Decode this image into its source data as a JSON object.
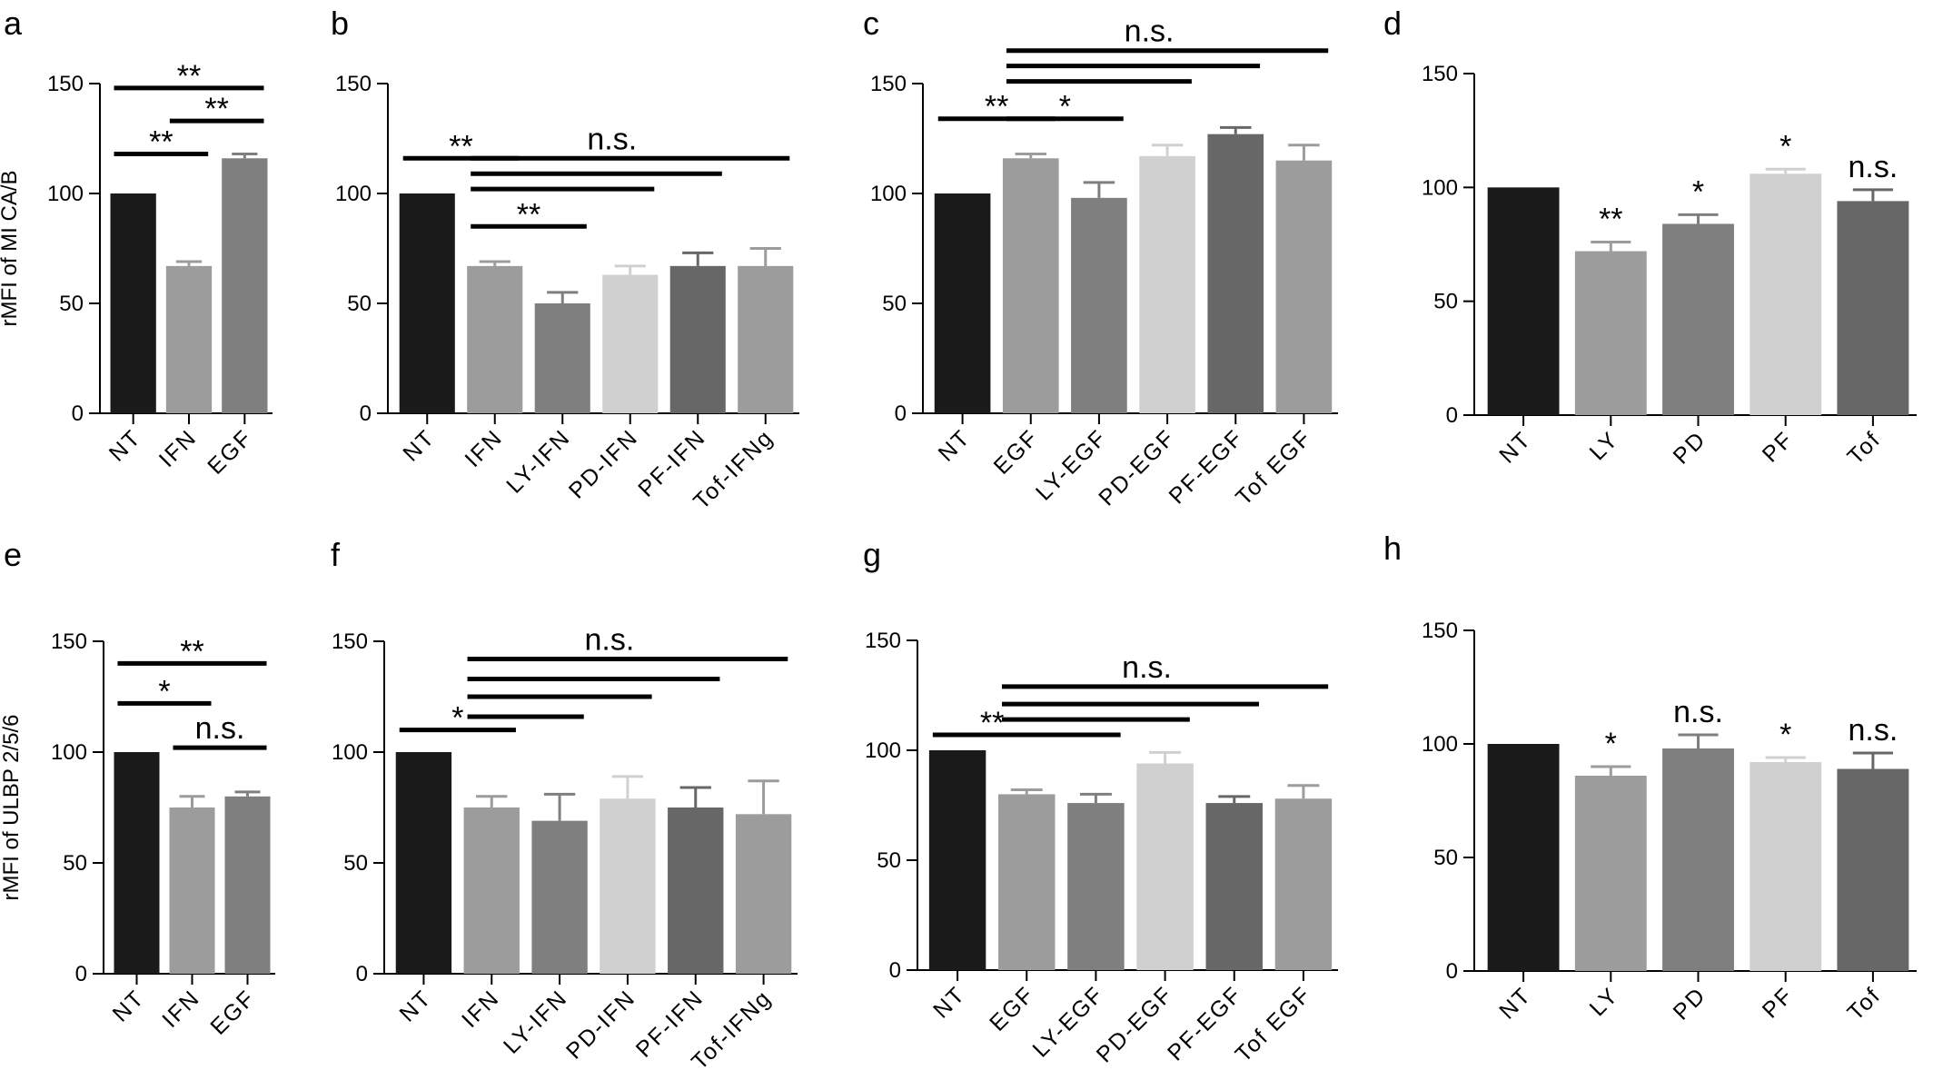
{
  "colors": {
    "black": "#1a1a1a",
    "mid_gray": "#9c9c9c",
    "gray": "#7f7f7f",
    "light_gray": "#d0d0d0",
    "dark_gray": "#676767"
  },
  "chart_data": [
    {
      "type": "bar",
      "panel_label": "a",
      "ylabel": "rMFI of MI CA/B",
      "ylim": [
        0,
        150
      ],
      "yticks": [
        0,
        50,
        100,
        150
      ],
      "categories": [
        "NT",
        "IFN",
        "EGF"
      ],
      "values": [
        100,
        67,
        116
      ],
      "errors": [
        0,
        2,
        2
      ],
      "colors": [
        "black",
        "mid_gray",
        "gray"
      ],
      "significance": [
        {
          "from": 0,
          "to": 2,
          "y": 148,
          "label": "**"
        },
        {
          "from": 0,
          "to": 1,
          "y": 118,
          "label": "**"
        },
        {
          "from": 1,
          "to": 2,
          "y": 133,
          "label": "**"
        }
      ]
    },
    {
      "type": "bar",
      "panel_label": "b",
      "ylabel": "",
      "ylim": [
        0,
        150
      ],
      "yticks": [
        0,
        50,
        100,
        150
      ],
      "categories": [
        "NT",
        "IFN",
        "LY-IFN",
        "PD-IFN",
        "PF-IFN",
        "Tof-IFNg"
      ],
      "values": [
        100,
        67,
        50,
        63,
        67,
        67
      ],
      "errors": [
        0,
        2,
        5,
        4,
        6,
        8
      ],
      "colors": [
        "black",
        "mid_gray",
        "gray",
        "light_gray",
        "dark_gray",
        "mid_gray"
      ],
      "significance": [
        {
          "from": 0,
          "to": 1,
          "y": 116,
          "label": "**"
        },
        {
          "from": 1,
          "to": 5,
          "y": 116,
          "label": "n.s."
        },
        {
          "from": 1,
          "to": 4,
          "y": 109,
          "label": ""
        },
        {
          "from": 1,
          "to": 3,
          "y": 102,
          "label": ""
        },
        {
          "from": 1,
          "to": 2,
          "y": 85,
          "label": "**"
        }
      ]
    },
    {
      "type": "bar",
      "panel_label": "c",
      "ylabel": "",
      "ylim": [
        0,
        150
      ],
      "yticks": [
        0,
        50,
        100,
        150
      ],
      "categories": [
        "NT",
        "EGF",
        "LY-EGF",
        "PD-EGF",
        "PF-EGF",
        "Tof EGF"
      ],
      "values": [
        100,
        116,
        98,
        117,
        127,
        115
      ],
      "errors": [
        0,
        2,
        7,
        5,
        3,
        7
      ],
      "colors": [
        "black",
        "mid_gray",
        "gray",
        "light_gray",
        "dark_gray",
        "mid_gray"
      ],
      "significance": [
        {
          "from": 0,
          "to": 1,
          "y": 134,
          "label": "**"
        },
        {
          "from": 1,
          "to": 5,
          "y": 165,
          "label": "n.s."
        },
        {
          "from": 1,
          "to": 4,
          "y": 158,
          "label": ""
        },
        {
          "from": 1,
          "to": 3,
          "y": 151,
          "label": ""
        },
        {
          "from": 1,
          "to": 2,
          "y": 134,
          "label": "*"
        }
      ]
    },
    {
      "type": "bar",
      "panel_label": "d",
      "ylabel": "",
      "ylim": [
        0,
        150
      ],
      "yticks": [
        0,
        50,
        100,
        150
      ],
      "categories": [
        "NT",
        "LY",
        "PD",
        "PF",
        "Tof"
      ],
      "values": [
        100,
        72,
        84,
        106,
        94
      ],
      "errors": [
        0,
        4,
        4,
        2,
        5
      ],
      "colors": [
        "black",
        "mid_gray",
        "gray",
        "light_gray",
        "dark_gray"
      ],
      "annotations": [
        "",
        "**",
        "*",
        "*",
        "n.s."
      ]
    },
    {
      "type": "bar",
      "panel_label": "e",
      "ylabel": "rMFI of ULBP 2/5/6",
      "ylim": [
        0,
        150
      ],
      "yticks": [
        0,
        50,
        100,
        150
      ],
      "categories": [
        "NT",
        "IFN",
        "EGF"
      ],
      "values": [
        100,
        75,
        80
      ],
      "errors": [
        0,
        5,
        2
      ],
      "colors": [
        "black",
        "mid_gray",
        "gray"
      ],
      "significance": [
        {
          "from": 0,
          "to": 2,
          "y": 140,
          "label": "**"
        },
        {
          "from": 0,
          "to": 1,
          "y": 122,
          "label": "*"
        },
        {
          "from": 1,
          "to": 2,
          "y": 102,
          "label": "n.s."
        }
      ]
    },
    {
      "type": "bar",
      "panel_label": "f",
      "ylabel": "",
      "ylim": [
        0,
        150
      ],
      "yticks": [
        0,
        50,
        100,
        150
      ],
      "categories": [
        "NT",
        "IFN",
        "LY-IFN",
        "PD-IFN",
        "PF-IFN",
        "Tof-IFNg"
      ],
      "values": [
        100,
        75,
        69,
        79,
        75,
        72
      ],
      "errors": [
        0,
        5,
        12,
        10,
        9,
        15
      ],
      "colors": [
        "black",
        "mid_gray",
        "gray",
        "light_gray",
        "dark_gray",
        "mid_gray"
      ],
      "significance": [
        {
          "from": 0,
          "to": 1,
          "y": 110,
          "label": "*"
        },
        {
          "from": 1,
          "to": 5,
          "y": 142,
          "label": "n.s."
        },
        {
          "from": 1,
          "to": 4,
          "y": 133,
          "label": ""
        },
        {
          "from": 1,
          "to": 3,
          "y": 125,
          "label": ""
        },
        {
          "from": 1,
          "to": 2,
          "y": 116,
          "label": ""
        }
      ]
    },
    {
      "type": "bar",
      "panel_label": "g",
      "ylabel": "",
      "ylim": [
        0,
        150
      ],
      "yticks": [
        0,
        50,
        100,
        150
      ],
      "categories": [
        "NT",
        "EGF",
        "LY-EGF",
        "PD-EGF",
        "PF-EGF",
        "Tof EGF"
      ],
      "values": [
        100,
        80,
        76,
        94,
        76,
        78
      ],
      "errors": [
        0,
        2,
        4,
        5,
        3,
        6
      ],
      "colors": [
        "black",
        "mid_gray",
        "gray",
        "light_gray",
        "dark_gray",
        "mid_gray"
      ],
      "significance": [
        {
          "from": 0,
          "to": 1,
          "y": 107,
          "label": "**"
        },
        {
          "from": 1,
          "to": 5,
          "y": 129,
          "label": "n.s."
        },
        {
          "from": 1,
          "to": 4,
          "y": 121,
          "label": ""
        },
        {
          "from": 1,
          "to": 3,
          "y": 114,
          "label": ""
        },
        {
          "from": 1,
          "to": 2,
          "y": 107,
          "label": ""
        }
      ]
    },
    {
      "type": "bar",
      "panel_label": "h",
      "ylabel": "",
      "ylim": [
        0,
        150
      ],
      "yticks": [
        0,
        50,
        100,
        150
      ],
      "categories": [
        "NT",
        "LY",
        "PD",
        "PF",
        "Tof"
      ],
      "values": [
        100,
        86,
        98,
        92,
        89
      ],
      "errors": [
        0,
        4,
        6,
        2,
        7
      ],
      "colors": [
        "black",
        "mid_gray",
        "gray",
        "light_gray",
        "dark_gray"
      ],
      "annotations": [
        "",
        "*",
        "n.s.",
        "*",
        "n.s."
      ]
    }
  ]
}
